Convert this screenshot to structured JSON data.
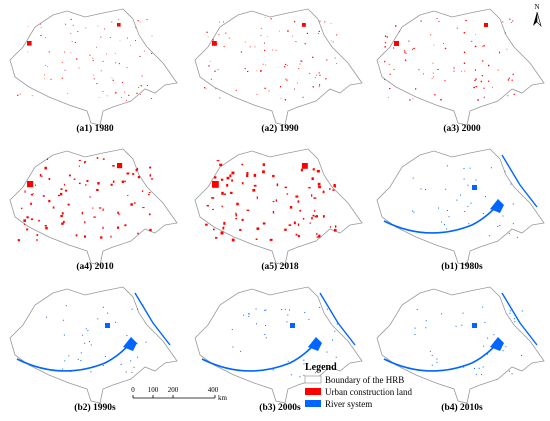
{
  "panels": [
    {
      "label": "(a1) 1980"
    },
    {
      "label": "(a2) 1990"
    },
    {
      "label": "(a3) 2000"
    },
    {
      "label": "(a4) 2010"
    },
    {
      "label": "(a5) 2018"
    },
    {
      "label": "(b1) 1980s"
    },
    {
      "label": "(b2) 1990s"
    },
    {
      "label": "(b3) 2000s"
    },
    {
      "label": "(b4) 2010s"
    }
  ],
  "legend": {
    "title": "Legend",
    "items": [
      {
        "label": "Boundary of the HRB"
      },
      {
        "label": "Urban construction land"
      },
      {
        "label": "River system"
      }
    ]
  },
  "scale_bar": {
    "ticks": [
      "0",
      "100",
      "200",
      "400"
    ],
    "unit": "km"
  },
  "north_arrow": "N"
}
